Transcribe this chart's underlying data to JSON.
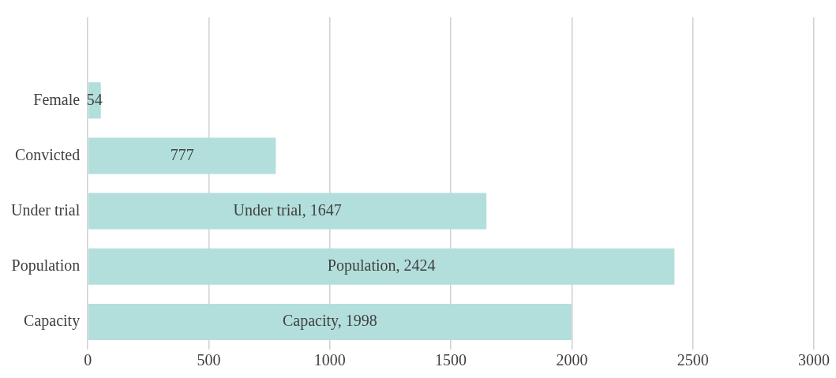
{
  "chart_data": {
    "type": "bar",
    "orientation": "horizontal",
    "categories": [
      null,
      "Female",
      "Convicted",
      "Under trial",
      "Population",
      "Capacity"
    ],
    "values": [
      null,
      54,
      777,
      1647,
      2424,
      1998
    ],
    "value_labels": [
      null,
      "54",
      "777",
      "Under trial, 1647",
      "Population, 2424",
      "Capacity, 1998"
    ],
    "color": "#b2dfdb",
    "xlim": [
      0,
      3000
    ],
    "xticks": [
      0,
      500,
      1000,
      1500,
      2000,
      2500,
      3000
    ],
    "grid": "x",
    "legend": false
  }
}
